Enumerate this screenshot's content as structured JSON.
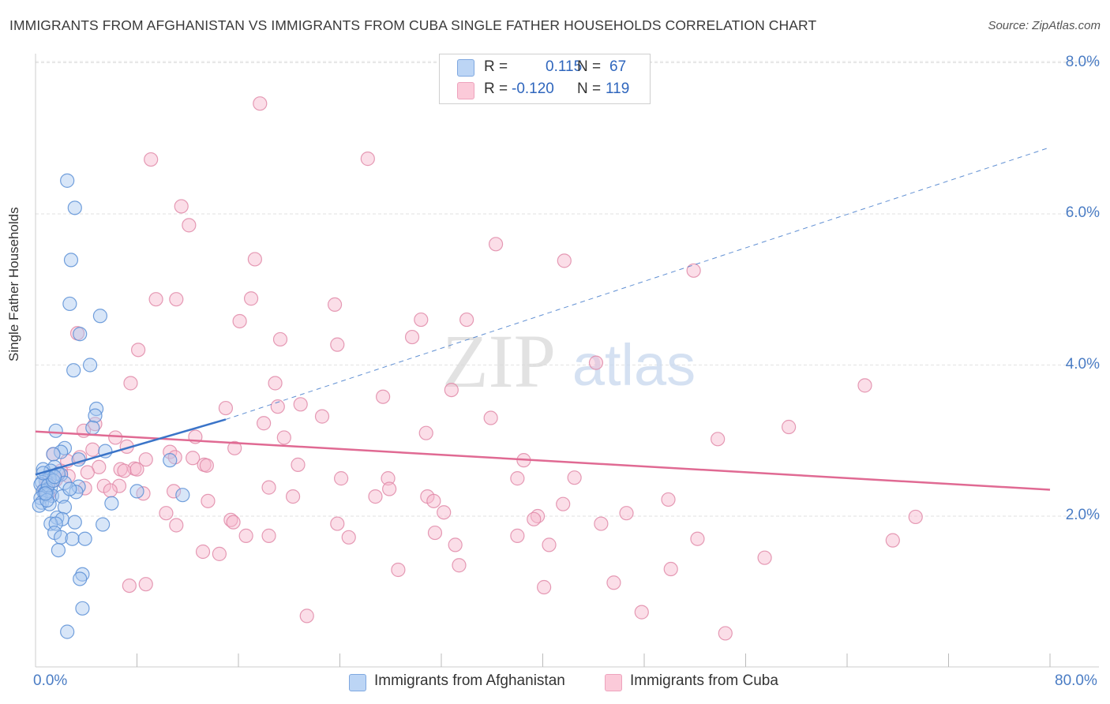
{
  "title": "IMMIGRANTS FROM AFGHANISTAN VS IMMIGRANTS FROM CUBA SINGLE FATHER HOUSEHOLDS CORRELATION CHART",
  "source": "Source: ZipAtlas.com",
  "watermark": {
    "zip": "ZIP",
    "atlas": "atlas"
  },
  "legend_top": {
    "r_label": "R =",
    "n_label": "N =",
    "rows": [
      {
        "r": "0.115",
        "n": "67",
        "color": "#a9c8f0"
      },
      {
        "r": "-0.120",
        "n": "119",
        "color": "#f7b6cb"
      }
    ]
  },
  "colors": {
    "afghanistan_fill": "#a9c8f0",
    "afghanistan_stroke": "#5b8fd6",
    "afghanistan_line": "#3a74c8",
    "cuba_fill": "#f7b6cb",
    "cuba_stroke": "#e08aa8",
    "cuba_line": "#e06a93",
    "axis_text": "#4a7cc4"
  },
  "chart_data": {
    "type": "scatter",
    "title": "IMMIGRANTS FROM AFGHANISTAN VS IMMIGRANTS FROM CUBA SINGLE FATHER HOUSEHOLDS CORRELATION CHART",
    "xlabel": "",
    "ylabel": "Single Father Households",
    "xlim": [
      0,
      80
    ],
    "ylim": [
      0,
      8.3
    ],
    "x_tick_labels": [
      "0.0%",
      "80.0%"
    ],
    "y_ticks": [
      2,
      4,
      6,
      8
    ],
    "y_tick_labels": [
      "2.0%",
      "4.0%",
      "6.0%",
      "8.0%"
    ],
    "grid": true,
    "legend_position": "bottom",
    "series": [
      {
        "name": "Immigrants from Afghanistan",
        "trend": {
          "x": [
            0,
            15
          ],
          "y": [
            2.55,
            3.28
          ],
          "extended_x": [
            15,
            80
          ],
          "extended_y": [
            3.28,
            6.88
          ]
        },
        "points": [
          [
            2.5,
            6.44
          ],
          [
            3.1,
            6.08
          ],
          [
            2.8,
            5.39
          ],
          [
            2.7,
            4.81
          ],
          [
            5.1,
            4.65
          ],
          [
            3.5,
            4.41
          ],
          [
            4.3,
            4.0
          ],
          [
            3.0,
            3.93
          ],
          [
            4.8,
            3.42
          ],
          [
            4.7,
            3.33
          ],
          [
            4.5,
            3.17
          ],
          [
            1.6,
            3.13
          ],
          [
            2.3,
            2.9
          ],
          [
            2.0,
            2.85
          ],
          [
            1.4,
            2.82
          ],
          [
            5.5,
            2.86
          ],
          [
            3.4,
            2.75
          ],
          [
            10.6,
            2.74
          ],
          [
            1.5,
            2.65
          ],
          [
            0.6,
            2.62
          ],
          [
            1.2,
            2.6
          ],
          [
            2.0,
            2.55
          ],
          [
            1.8,
            2.56
          ],
          [
            1.1,
            2.5
          ],
          [
            0.8,
            2.47
          ],
          [
            0.5,
            2.45
          ],
          [
            0.4,
            2.42
          ],
          [
            2.3,
            2.44
          ],
          [
            3.4,
            2.39
          ],
          [
            1.2,
            2.38
          ],
          [
            0.9,
            2.35
          ],
          [
            0.6,
            2.33
          ],
          [
            0.7,
            2.3
          ],
          [
            0.9,
            2.28
          ],
          [
            1.3,
            2.27
          ],
          [
            2.1,
            2.26
          ],
          [
            0.4,
            2.24
          ],
          [
            3.2,
            2.32
          ],
          [
            8.0,
            2.33
          ],
          [
            11.6,
            2.28
          ],
          [
            0.5,
            2.18
          ],
          [
            0.3,
            2.14
          ],
          [
            1.1,
            2.16
          ],
          [
            2.3,
            2.12
          ],
          [
            6.0,
            2.17
          ],
          [
            1.7,
            1.98
          ],
          [
            2.1,
            1.96
          ],
          [
            1.2,
            1.9
          ],
          [
            1.6,
            1.9
          ],
          [
            3.1,
            1.92
          ],
          [
            5.3,
            1.89
          ],
          [
            1.5,
            1.78
          ],
          [
            2.0,
            1.72
          ],
          [
            2.9,
            1.7
          ],
          [
            3.9,
            1.7
          ],
          [
            1.8,
            1.55
          ],
          [
            3.7,
            1.23
          ],
          [
            3.5,
            1.17
          ],
          [
            3.7,
            0.78
          ],
          [
            2.5,
            0.47
          ],
          [
            1.0,
            2.41
          ],
          [
            1.4,
            2.47
          ],
          [
            0.9,
            2.21
          ],
          [
            2.7,
            2.36
          ],
          [
            1.5,
            2.52
          ],
          [
            0.8,
            2.3
          ],
          [
            0.6,
            2.57
          ]
        ]
      },
      {
        "name": "Immigrants from Cuba",
        "trend": {
          "x": [
            0,
            80
          ],
          "y": [
            3.12,
            2.35
          ]
        },
        "points": [
          [
            17.7,
            7.46
          ],
          [
            9.1,
            6.72
          ],
          [
            26.2,
            6.73
          ],
          [
            11.5,
            6.1
          ],
          [
            12.1,
            5.85
          ],
          [
            36.3,
            5.6
          ],
          [
            17.3,
            5.4
          ],
          [
            41.7,
            5.38
          ],
          [
            51.9,
            5.25
          ],
          [
            11.1,
            4.87
          ],
          [
            9.5,
            4.87
          ],
          [
            17.0,
            4.88
          ],
          [
            23.6,
            4.8
          ],
          [
            30.4,
            4.6
          ],
          [
            34.0,
            4.6
          ],
          [
            16.1,
            4.58
          ],
          [
            3.3,
            4.42
          ],
          [
            19.3,
            4.34
          ],
          [
            29.7,
            4.37
          ],
          [
            23.8,
            4.27
          ],
          [
            8.1,
            4.2
          ],
          [
            44.2,
            4.03
          ],
          [
            7.5,
            3.76
          ],
          [
            18.9,
            3.76
          ],
          [
            32.8,
            3.67
          ],
          [
            65.4,
            3.73
          ],
          [
            27.4,
            3.58
          ],
          [
            15.0,
            3.43
          ],
          [
            19.1,
            3.45
          ],
          [
            20.9,
            3.48
          ],
          [
            22.6,
            3.32
          ],
          [
            35.9,
            3.3
          ],
          [
            18.0,
            3.23
          ],
          [
            4.7,
            3.22
          ],
          [
            3.8,
            3.13
          ],
          [
            30.8,
            3.1
          ],
          [
            59.4,
            3.18
          ],
          [
            6.3,
            3.04
          ],
          [
            12.6,
            3.05
          ],
          [
            19.6,
            3.04
          ],
          [
            53.8,
            3.02
          ],
          [
            7.2,
            2.92
          ],
          [
            15.7,
            2.9
          ],
          [
            4.5,
            2.88
          ],
          [
            10.6,
            2.85
          ],
          [
            1.4,
            2.82
          ],
          [
            11.0,
            2.78
          ],
          [
            3.5,
            2.78
          ],
          [
            8.7,
            2.75
          ],
          [
            12.4,
            2.77
          ],
          [
            2.5,
            2.73
          ],
          [
            38.5,
            2.74
          ],
          [
            20.7,
            2.68
          ],
          [
            13.3,
            2.68
          ],
          [
            13.5,
            2.67
          ],
          [
            5.0,
            2.65
          ],
          [
            6.7,
            2.62
          ],
          [
            7.8,
            2.63
          ],
          [
            7.0,
            2.6
          ],
          [
            2.0,
            2.6
          ],
          [
            4.1,
            2.58
          ],
          [
            27.8,
            2.5
          ],
          [
            24.1,
            2.5
          ],
          [
            42.5,
            2.51
          ],
          [
            38.0,
            2.5
          ],
          [
            6.6,
            2.4
          ],
          [
            0.9,
            2.44
          ],
          [
            5.4,
            2.4
          ],
          [
            18.4,
            2.38
          ],
          [
            27.9,
            2.36
          ],
          [
            10.9,
            2.33
          ],
          [
            8.5,
            2.3
          ],
          [
            26.8,
            2.26
          ],
          [
            20.3,
            2.26
          ],
          [
            30.9,
            2.26
          ],
          [
            49.9,
            2.22
          ],
          [
            41.6,
            2.16
          ],
          [
            13.6,
            2.2
          ],
          [
            31.4,
            2.2
          ],
          [
            32.2,
            2.05
          ],
          [
            10.3,
            2.04
          ],
          [
            15.4,
            1.95
          ],
          [
            46.6,
            2.04
          ],
          [
            39.6,
            2.0
          ],
          [
            23.8,
            1.9
          ],
          [
            39.3,
            1.96
          ],
          [
            11.1,
            1.88
          ],
          [
            31.5,
            1.78
          ],
          [
            44.6,
            1.9
          ],
          [
            15.6,
            1.92
          ],
          [
            38.0,
            1.74
          ],
          [
            18.4,
            1.74
          ],
          [
            16.6,
            1.74
          ],
          [
            24.7,
            1.72
          ],
          [
            52.2,
            1.7
          ],
          [
            67.6,
            1.68
          ],
          [
            33.1,
            1.62
          ],
          [
            40.5,
            1.62
          ],
          [
            13.2,
            1.53
          ],
          [
            14.5,
            1.5
          ],
          [
            57.5,
            1.45
          ],
          [
            33.4,
            1.35
          ],
          [
            50.1,
            1.3
          ],
          [
            28.6,
            1.29
          ],
          [
            45.6,
            1.12
          ],
          [
            7.4,
            1.08
          ],
          [
            8.7,
            1.1
          ],
          [
            40.1,
            1.06
          ],
          [
            21.4,
            0.68
          ],
          [
            47.8,
            0.73
          ],
          [
            54.4,
            0.45
          ],
          [
            69.4,
            1.99
          ],
          [
            0.7,
            2.36
          ],
          [
            1.6,
            2.48
          ],
          [
            2.6,
            2.53
          ],
          [
            3.9,
            2.37
          ],
          [
            1.0,
            2.29
          ],
          [
            5.9,
            2.34
          ],
          [
            8.0,
            2.62
          ]
        ]
      }
    ]
  },
  "bottom_legend": [
    {
      "label": "Immigrants from Afghanistan"
    },
    {
      "label": "Immigrants from Cuba"
    }
  ]
}
